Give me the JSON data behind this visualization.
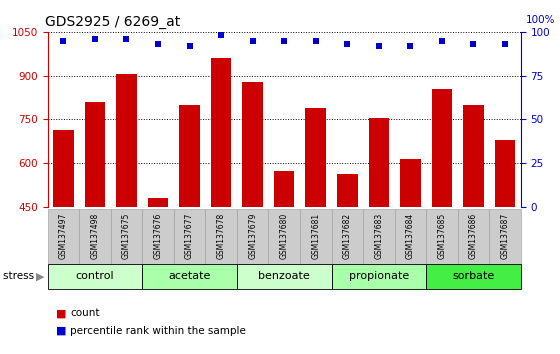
{
  "title": "GDS2925 / 6269_at",
  "samples": [
    "GSM137497",
    "GSM137498",
    "GSM137675",
    "GSM137676",
    "GSM137677",
    "GSM137678",
    "GSM137679",
    "GSM137680",
    "GSM137681",
    "GSM137682",
    "GSM137683",
    "GSM137684",
    "GSM137685",
    "GSM137686",
    "GSM137687"
  ],
  "counts": [
    715,
    810,
    905,
    480,
    800,
    960,
    880,
    575,
    790,
    565,
    755,
    615,
    855,
    800,
    680
  ],
  "percentiles": [
    95,
    96,
    96,
    93,
    92,
    98,
    95,
    95,
    95,
    93,
    92,
    92,
    95,
    93,
    93
  ],
  "ylim_left": [
    450,
    1050
  ],
  "ylim_right": [
    0,
    100
  ],
  "yticks_left": [
    450,
    600,
    750,
    900,
    1050
  ],
  "yticks_right": [
    0,
    25,
    50,
    75,
    100
  ],
  "bar_color": "#cc0000",
  "dot_color": "#0000cc",
  "groups": [
    {
      "label": "control",
      "start": 0,
      "end": 3,
      "color": "#ccffcc"
    },
    {
      "label": "acetate",
      "start": 3,
      "end": 6,
      "color": "#aaffaa"
    },
    {
      "label": "benzoate",
      "start": 6,
      "end": 9,
      "color": "#ccffcc"
    },
    {
      "label": "propionate",
      "start": 9,
      "end": 12,
      "color": "#aaffaa"
    },
    {
      "label": "sorbate",
      "start": 12,
      "end": 15,
      "color": "#44ee44"
    }
  ],
  "stress_label": "stress",
  "legend_count_label": "count",
  "legend_pct_label": "percentile rank within the sample",
  "background_color": "#ffffff",
  "axis_label_color_left": "#cc0000",
  "axis_label_color_right": "#0000cc",
  "sample_bg_color": "#cccccc",
  "sample_edge_color": "#999999",
  "group_edge_color": "#000000"
}
